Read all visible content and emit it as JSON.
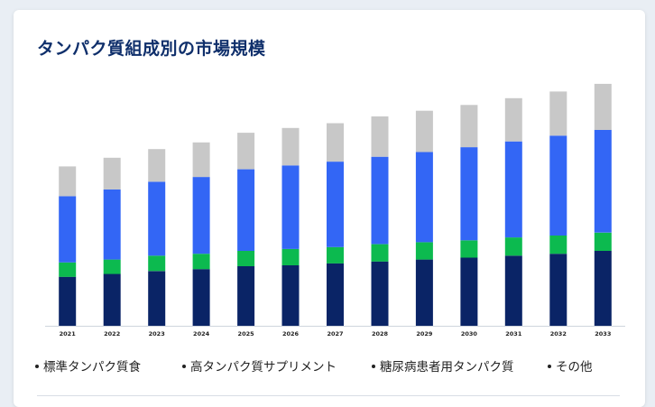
{
  "title": "タンパク質組成別の市場規模",
  "legend": [
    {
      "label": "標準タンパク質食"
    },
    {
      "label": "高タンパク質サプリメント"
    },
    {
      "label": "糖尿病患者用タンパク質"
    },
    {
      "label": "その他"
    }
  ],
  "chart_data": {
    "type": "bar",
    "stacked": true,
    "categories": [
      "2021",
      "2022",
      "2023",
      "2024",
      "2025",
      "2026",
      "2027",
      "2028",
      "2029",
      "2030",
      "2031",
      "2032",
      "2033"
    ],
    "series": [
      {
        "name": "標準タンパク質食",
        "color": "#0a2466",
        "values": [
          51,
          54,
          57,
          59,
          62,
          63,
          65,
          67,
          69,
          71,
          73,
          75,
          78
        ]
      },
      {
        "name": "高タンパク質サプリメント",
        "color": "#0cba4f",
        "values": [
          15,
          15,
          16,
          16,
          16,
          17,
          17,
          18,
          18,
          18,
          19,
          19,
          19
        ]
      },
      {
        "name": "糖尿病患者用タンパク質",
        "color": "#3366f5",
        "values": [
          69,
          73,
          77,
          80,
          85,
          87,
          89,
          91,
          94,
          97,
          100,
          104,
          107
        ]
      },
      {
        "name": "その他",
        "color": "#c8c8c8",
        "values": [
          31,
          33,
          34,
          36,
          38,
          39,
          40,
          42,
          43,
          44,
          45,
          46,
          48
        ]
      }
    ],
    "ylim": [
      0,
      250
    ],
    "show_y_axis": false,
    "grid": false,
    "legend_position": "bottom"
  }
}
